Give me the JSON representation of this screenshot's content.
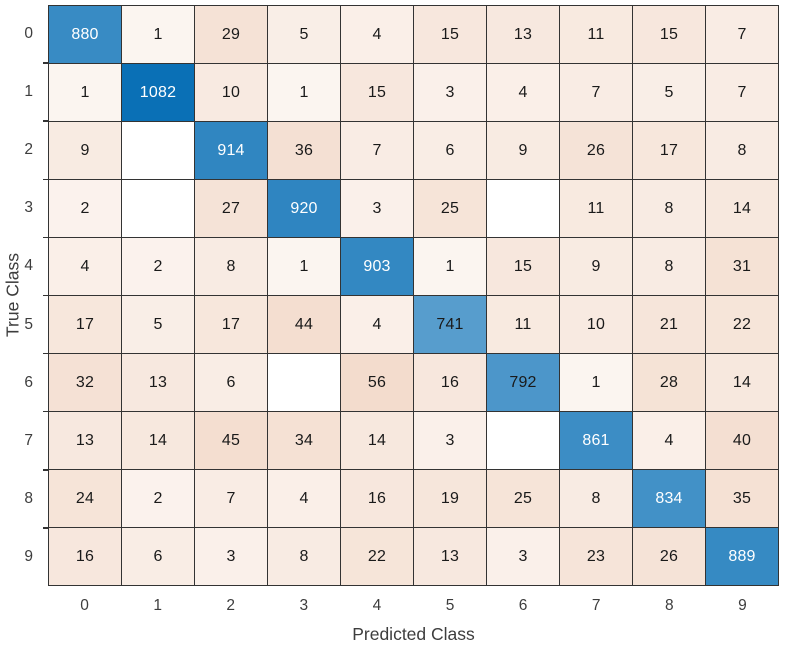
{
  "chart_data": {
    "type": "heatmap",
    "subtype": "confusion-matrix",
    "xlabel": "Predicted Class",
    "ylabel": "True Class",
    "x_tick_labels": [
      "0",
      "1",
      "2",
      "3",
      "4",
      "5",
      "6",
      "7",
      "8",
      "9"
    ],
    "y_tick_labels": [
      "0",
      "1",
      "2",
      "3",
      "4",
      "5",
      "6",
      "7",
      "8",
      "9"
    ],
    "matrix": [
      [
        880,
        1,
        29,
        5,
        4,
        15,
        13,
        11,
        15,
        7
      ],
      [
        1,
        1082,
        10,
        1,
        15,
        3,
        4,
        7,
        5,
        7
      ],
      [
        9,
        null,
        914,
        36,
        7,
        6,
        9,
        26,
        17,
        8
      ],
      [
        2,
        null,
        27,
        920,
        3,
        25,
        null,
        11,
        8,
        14
      ],
      [
        4,
        2,
        8,
        1,
        903,
        1,
        15,
        9,
        8,
        31
      ],
      [
        17,
        5,
        17,
        44,
        4,
        741,
        11,
        10,
        21,
        22
      ],
      [
        32,
        13,
        6,
        null,
        56,
        16,
        792,
        1,
        28,
        14
      ],
      [
        13,
        14,
        45,
        34,
        14,
        3,
        null,
        861,
        4,
        40
      ],
      [
        24,
        2,
        7,
        4,
        16,
        19,
        25,
        8,
        834,
        35
      ],
      [
        16,
        6,
        3,
        8,
        22,
        13,
        3,
        23,
        26,
        889
      ]
    ],
    "max_diagonal": 1082,
    "max_offdiagonal": 56,
    "legend": "none",
    "grid": "on",
    "colors": {
      "diagonal_full": "#0a70b6",
      "offdiagonal_full": "#f3dccd",
      "empty_cell": "#ffffff",
      "grid_line": "#333333",
      "cell_text_dark": "#1a1a1a",
      "cell_text_light": "#ffffff",
      "axis_text": "#3d3d3d"
    }
  }
}
